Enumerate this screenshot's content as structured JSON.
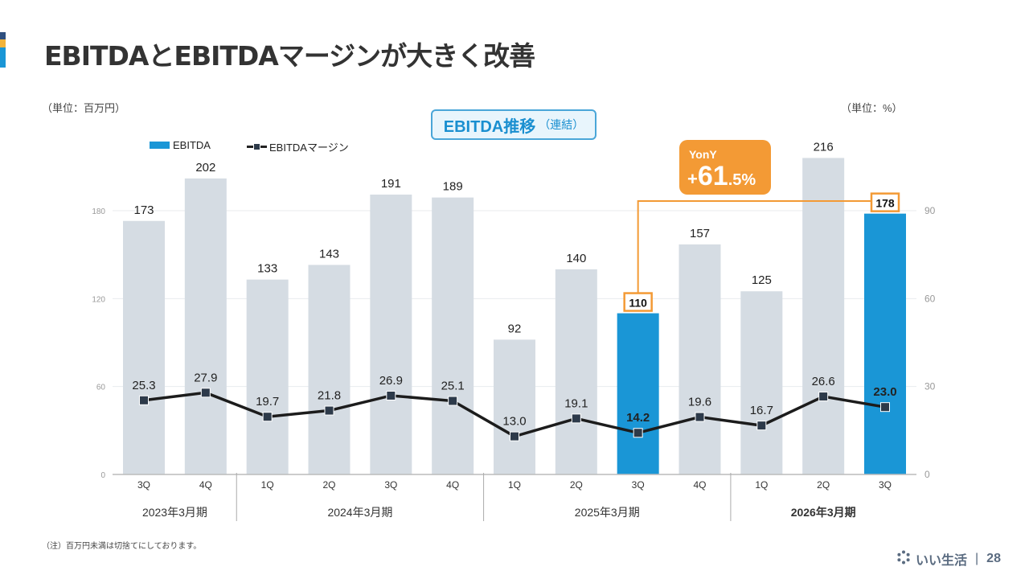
{
  "page": {
    "title": "EBITDAとEBITDAマージンが大きく改善",
    "unit_left": "（単位：百万円）",
    "unit_right": "（単位：%）",
    "chart_title": "EBITDA推移",
    "chart_title_sub": "（連結）",
    "yony_label": "YonY",
    "yony_sign": "+",
    "yony_int": "61",
    "yony_dec": ".5%",
    "note": "（注）百万円未満は切捨てにしております。",
    "brand": "いい生活",
    "page_number": "28",
    "colors": {
      "highlight_bar": "#1a96d6",
      "normal_bar": "#d5dce3",
      "line": "#1c1c1c",
      "marker": "#2d3a4a",
      "callout": "#f39a35"
    }
  },
  "chart_data": {
    "type": "bar",
    "title": "EBITDA推移（連結）",
    "categories": [
      "3Q",
      "4Q",
      "1Q",
      "2Q",
      "3Q",
      "4Q",
      "1Q",
      "2Q",
      "3Q",
      "4Q",
      "1Q",
      "2Q",
      "3Q"
    ],
    "groups": [
      {
        "label": "2023年3月期",
        "count": 2,
        "bold": false
      },
      {
        "label": "2024年3月期",
        "count": 4,
        "bold": false
      },
      {
        "label": "2025年3月期",
        "count": 4,
        "bold": false
      },
      {
        "label": "2026年3月期",
        "count": 3,
        "bold": true
      }
    ],
    "series": [
      {
        "name": "EBITDA",
        "type": "bar",
        "axis": "left",
        "values": [
          173,
          202,
          133,
          143,
          191,
          189,
          92,
          140,
          110,
          157,
          125,
          216,
          178
        ],
        "highlight": [
          false,
          false,
          false,
          false,
          false,
          false,
          false,
          false,
          true,
          false,
          false,
          false,
          true
        ]
      },
      {
        "name": "EBITDAマージン",
        "type": "line",
        "axis": "right",
        "values": [
          25.3,
          27.9,
          19.7,
          21.8,
          26.9,
          25.1,
          13.0,
          19.1,
          14.2,
          19.6,
          16.7,
          26.6,
          23.0
        ],
        "bold_labels": [
          false,
          false,
          false,
          false,
          false,
          false,
          false,
          false,
          true,
          false,
          false,
          false,
          true
        ]
      }
    ],
    "y_left": {
      "label": "百万円",
      "range": [
        0,
        180
      ],
      "ticks": [
        0,
        60,
        120,
        180
      ]
    },
    "y_right": {
      "label": "%",
      "range": [
        0,
        90
      ],
      "ticks": [
        0,
        30,
        60,
        90
      ]
    },
    "annotation": {
      "text": "YonY +61.5%",
      "from_index": 8,
      "to_index": 12
    },
    "legend": [
      "EBITDA",
      "EBITDAマージン"
    ],
    "legend_position": "top-left",
    "grid": true
  }
}
